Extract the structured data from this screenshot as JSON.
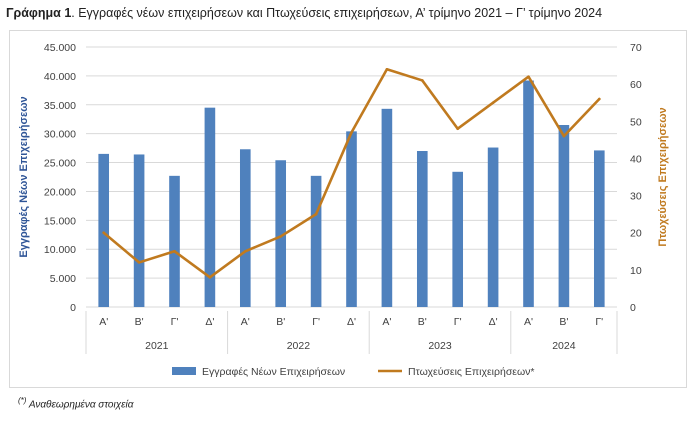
{
  "title": {
    "prefix": "Γράφημα 1",
    "text": ". Εγγραφές νέων επιχειρήσεων και Πτωχεύσεις επιχειρήσεων, Α’ τρίμηνο 2021 – Γ’ τρίμηνο 2024"
  },
  "footnote": {
    "mark": "(*)",
    "text": " Αναθεωρημένα στοιχεία"
  },
  "colors": {
    "bars": "#4f81bd",
    "line": "#c07a1f",
    "grid": "#d9d9d9",
    "left_axis_title": "#2f5597",
    "right_axis_title": "#c07a1f"
  },
  "chart_data": {
    "type": "bar+line",
    "categories": [
      "Α'",
      "Β'",
      "Γ'",
      "Δ'",
      "Α'",
      "Β'",
      "Γ'",
      "Δ'",
      "Α'",
      "Β'",
      "Γ'",
      "Δ'",
      "Α'",
      "Β'",
      "Γ'"
    ],
    "years": [
      {
        "label": "2021",
        "count": 4
      },
      {
        "label": "2022",
        "count": 4
      },
      {
        "label": "2023",
        "count": 4
      },
      {
        "label": "2024",
        "count": 3
      }
    ],
    "series": [
      {
        "name": "Εγγραφές Νέων Επιχειρήσεων",
        "type": "bar",
        "axis": "left",
        "values": [
          26500,
          26400,
          22700,
          34500,
          27300,
          25400,
          22700,
          30400,
          34300,
          27000,
          23400,
          27600,
          39200,
          31500,
          27100
        ]
      },
      {
        "name": "Πτωχεύσεις Επιχειρήσεων*",
        "type": "line",
        "axis": "right",
        "values": [
          20,
          12,
          15,
          8,
          15,
          19,
          25,
          47,
          64,
          61,
          48,
          55,
          62,
          46,
          56
        ]
      }
    ],
    "left_axis": {
      "label": "Εγγραφές Νέων Επιχειρήσεων",
      "min": 0,
      "max": 45000,
      "step": 5000,
      "tick_labels": [
        "0",
        "5.000",
        "10.000",
        "15.000",
        "20.000",
        "25.000",
        "30.000",
        "35.000",
        "40.000",
        "45.000"
      ]
    },
    "right_axis": {
      "label": "Πτωχεύσεις Επιχειρήσεων",
      "min": 0,
      "max": 70,
      "step": 10,
      "tick_labels": [
        "0",
        "10",
        "20",
        "30",
        "40",
        "50",
        "60",
        "70"
      ]
    },
    "grid": true,
    "legend_position": "bottom"
  }
}
